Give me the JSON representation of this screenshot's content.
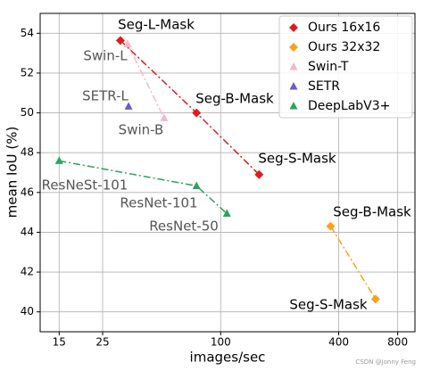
{
  "chart_data": {
    "type": "scatter-line",
    "xlabel": "images/sec",
    "ylabel": "mean IoU (%)",
    "xscale": "log",
    "xlim": [
      12,
      980
    ],
    "xticks": [
      15,
      25,
      100,
      400,
      800
    ],
    "ylim": [
      39,
      55
    ],
    "yticks": [
      40,
      42,
      44,
      46,
      48,
      50,
      52,
      54
    ],
    "grid": true,
    "legend_loc": "upper right",
    "series": [
      {
        "name": "Ours 16x16",
        "color": "#e31a1c",
        "marker": "diamond",
        "x": [
          30.8,
          75.3,
          157
        ],
        "values": [
          53.64,
          50.0,
          46.9
        ]
      },
      {
        "name": "Ours 32x32",
        "color": "#ff9f1a",
        "marker": "diamond",
        "x": [
          364,
          617
        ],
        "values": [
          44.3,
          40.64
        ]
      },
      {
        "name": "Swin-T",
        "color": "#f7b6c8",
        "marker": "triangle",
        "x": [
          33.5,
          51.5
        ],
        "values": [
          53.46,
          49.74
        ]
      },
      {
        "name": "SETR",
        "color": "#6a5acd",
        "marker": "triangle",
        "x": [
          33.9
        ],
        "values": [
          50.32
        ]
      },
      {
        "name": "DeepLabV3+",
        "color": "#2ca25f",
        "marker": "triangle",
        "x": [
          15.0,
          75.3,
          107.6
        ],
        "values": [
          47.59,
          46.33,
          44.94
        ]
      }
    ],
    "annotations": [
      "Seg-L-Mask",
      "Swin-L",
      "SETR-L",
      "Swin-B",
      "Seg-B-Mask",
      "Seg-S-Mask",
      "ResNeSt-101",
      "ResNet-101",
      "ResNet-50",
      "Seg-B-Mask",
      "Seg-S-Mask"
    ],
    "watermark": "CSDN @Jonny Feng"
  }
}
